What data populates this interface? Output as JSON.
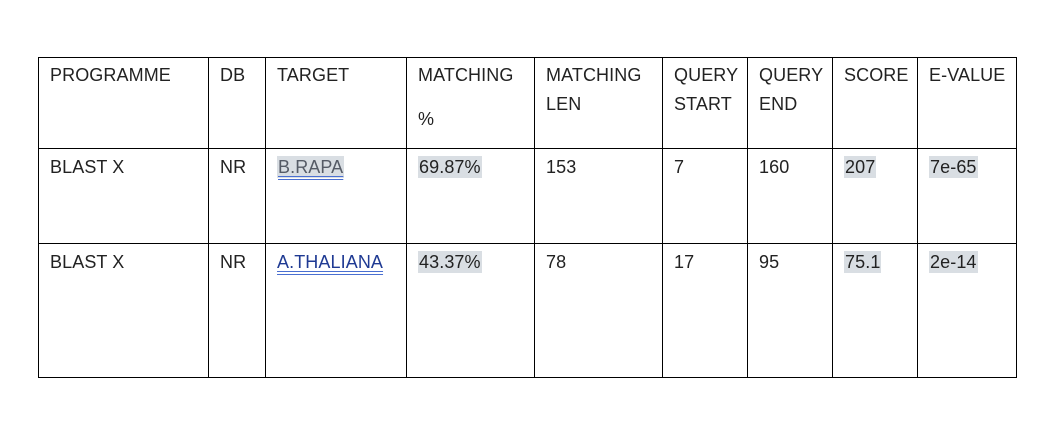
{
  "table": {
    "headers": [
      [
        "PROGRAMME"
      ],
      [
        "DB"
      ],
      [
        "TARGET"
      ],
      [
        "MATCHING",
        "%"
      ],
      [
        "MATCHING",
        "LEN"
      ],
      [
        "QUERY",
        "START"
      ],
      [
        "QUERY",
        "END"
      ],
      [
        "SCORE"
      ],
      [
        "E-VALUE"
      ]
    ],
    "rows": [
      {
        "programme": "BLAST X",
        "db": "NR",
        "target": "B.RAPA",
        "matching_pct": "69.87%",
        "matching_len": "153",
        "query_start": "7",
        "query_end": "160",
        "score": "207",
        "e_value": "7e-65"
      },
      {
        "programme": "BLAST X",
        "db": "NR",
        "target": "A.THALIANA",
        "matching_pct": "43.37%",
        "matching_len": "78",
        "query_start": "17",
        "query_end": "95",
        "score": "75.1",
        "e_value": "2e-14"
      }
    ]
  }
}
